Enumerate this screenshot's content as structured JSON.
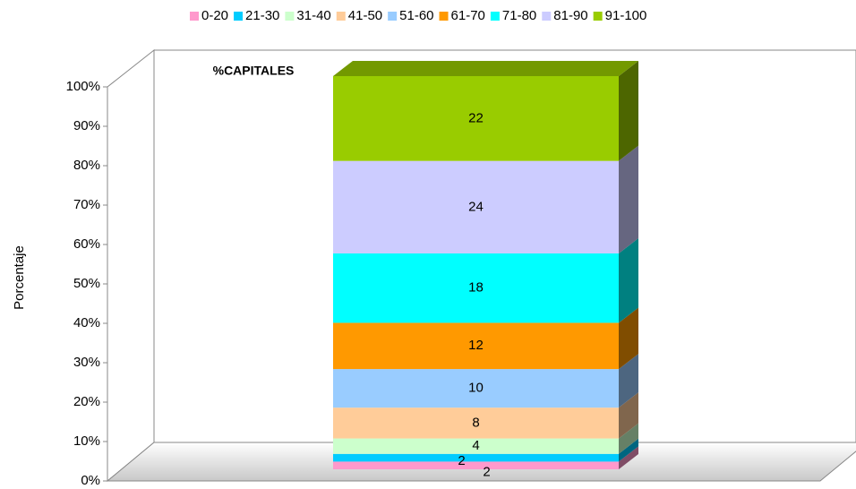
{
  "chart_data": {
    "type": "bar",
    "stacked": "percent",
    "title": "%CAPITALES",
    "y_label": "Porcentaje",
    "categories": [
      "%CAPITALES"
    ],
    "series": [
      {
        "name": "0-20",
        "color": "#ff99cc",
        "values": [
          2
        ]
      },
      {
        "name": "21-30",
        "color": "#00ccff",
        "values": [
          2
        ]
      },
      {
        "name": "31-40",
        "color": "#ccffcc",
        "values": [
          4
        ]
      },
      {
        "name": "41-50",
        "color": "#ffcc99",
        "values": [
          8
        ]
      },
      {
        "name": "51-60",
        "color": "#99ccff",
        "values": [
          10
        ]
      },
      {
        "name": "61-70",
        "color": "#ff9900",
        "values": [
          12
        ]
      },
      {
        "name": "71-80",
        "color": "#00ffff",
        "values": [
          18
        ]
      },
      {
        "name": "81-90",
        "color": "#ccccff",
        "values": [
          24
        ]
      },
      {
        "name": "91-100",
        "color": "#99cc00",
        "values": [
          22
        ]
      }
    ],
    "ylim": [
      0,
      100
    ],
    "yticks": [
      {
        "value": 0,
        "label": "0%"
      },
      {
        "value": 10,
        "label": "10%"
      },
      {
        "value": 20,
        "label": "20%"
      },
      {
        "value": 30,
        "label": "30%"
      },
      {
        "value": 40,
        "label": "40%"
      },
      {
        "value": 50,
        "label": "50%"
      },
      {
        "value": 60,
        "label": "60%"
      },
      {
        "value": 70,
        "label": "70%"
      },
      {
        "value": 80,
        "label": "80%"
      },
      {
        "value": 90,
        "label": "90%"
      },
      {
        "value": 100,
        "label": "100%"
      }
    ],
    "legend": "top"
  }
}
